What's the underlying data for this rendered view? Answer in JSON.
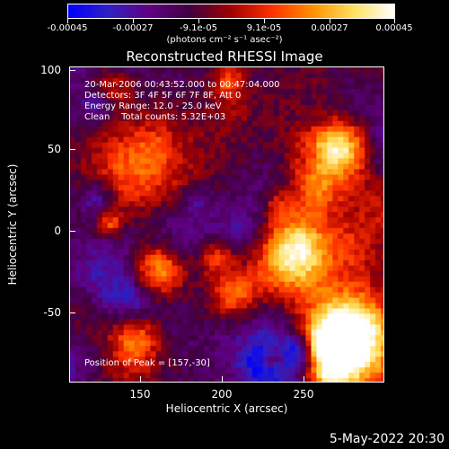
{
  "colorbar": {
    "tick_labels": [
      "-0.00045",
      "-0.00027",
      "-9.1e-05",
      "9.1e-05",
      "0.00027",
      "0.00045"
    ],
    "units": "(photons cm⁻² s⁻¹ asec⁻²)",
    "min": -0.00045,
    "max": 0.00045,
    "stops": [
      "#0000ff",
      "#3020c0",
      "#600080",
      "#400040",
      "#a00000",
      "#ff3000",
      "#ff9000",
      "#ffe060",
      "#ffffff"
    ]
  },
  "plot": {
    "title": "Reconstructed RHESSI Image",
    "xlabel": "Heliocentric X (arcsec)",
    "ylabel": "Heliocentric Y (arcsec)",
    "xlim": [
      105,
      295
    ],
    "ylim": [
      -92,
      100
    ],
    "xticks": [
      "150",
      "200",
      "250"
    ],
    "yticks": [
      "100",
      "50",
      "0",
      "-50"
    ],
    "annotations": {
      "line1": "20-Mar-2006 00:43:52.000 to 00:47:04.000",
      "line2": "Detectors: 3F 4F 5F 6F 7F 8F, Att 0",
      "line3": "Energy Range: 12.0 - 25.0 keV",
      "line4": "Clean    Total counts: 5.32E+03",
      "peak": "Position of Peak = [157,-30]"
    }
  },
  "datestamp": "5-May-2022 20:30"
}
